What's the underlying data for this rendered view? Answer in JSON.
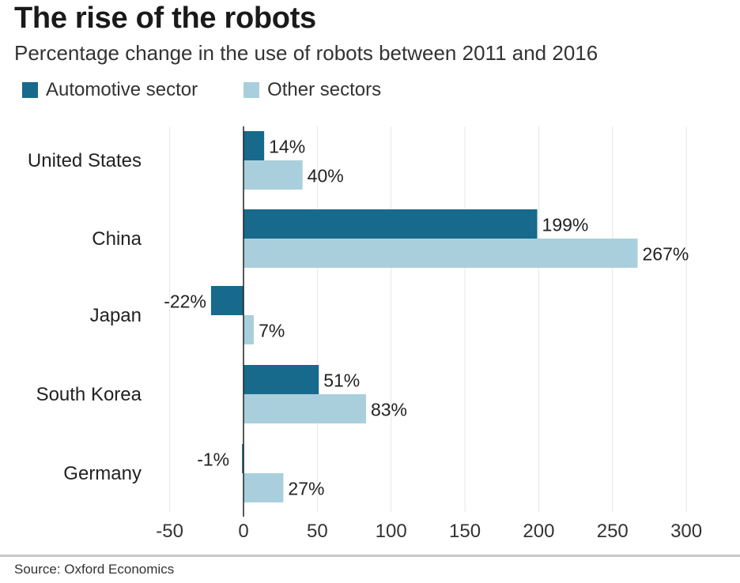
{
  "title": "The rise of the robots",
  "subtitle": "Percentage change in the use of robots between 2011 and 2016",
  "source": "Source: Oxford Economics",
  "colors": {
    "automotive": "#176a8c",
    "other": "#a9cfdc",
    "axis": "#222222",
    "grid": "#e6e6e6"
  },
  "chart_data": {
    "type": "bar",
    "orientation": "horizontal",
    "title": "The rise of the robots",
    "subtitle": "Percentage change in the use of robots between 2011 and 2016",
    "categories": [
      "United States",
      "China",
      "Japan",
      "South Korea",
      "Germany"
    ],
    "series": [
      {
        "name": "Automotive sector",
        "values": [
          14,
          199,
          -22,
          51,
          -1
        ],
        "labels": [
          "14%",
          "199%",
          "-22%",
          "51%",
          "-1%"
        ]
      },
      {
        "name": "Other sectors",
        "values": [
          40,
          267,
          7,
          83,
          27
        ],
        "labels": [
          "40%",
          "267%",
          "7%",
          "83%",
          "27%"
        ]
      }
    ],
    "xlim": [
      -50,
      300
    ],
    "xticks": [
      -50,
      0,
      50,
      100,
      150,
      200,
      250,
      300
    ],
    "xtick_labels": [
      "-50",
      "0",
      "50",
      "100",
      "150",
      "200",
      "250",
      "300"
    ],
    "xlabel": "",
    "ylabel": "",
    "grid": true,
    "legend": "top-left"
  }
}
